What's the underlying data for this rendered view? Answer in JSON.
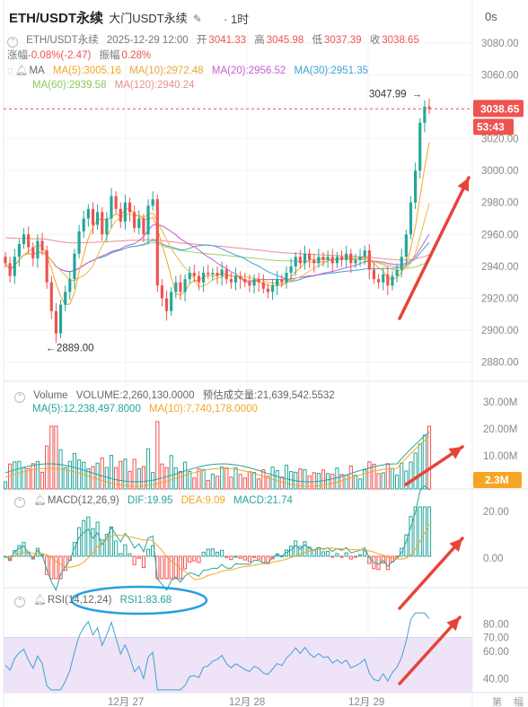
{
  "header": {
    "symbol": "ETH/USDT永续",
    "exchange": "大门USDT永续",
    "timeframe": "1时",
    "seconds": "0s"
  },
  "ohlc_line": {
    "symbol": "ETH/USDT永续",
    "datetime": "2025-12-29 12:00",
    "open_label": "开",
    "open": "3041.33",
    "high_label": "高",
    "high": "3045.98",
    "low_label": "低",
    "low": "3037.39",
    "close_label": "收",
    "close": "3038.65",
    "change_label": "涨幅",
    "change": "-0.08%(-2.47)",
    "amplitude_label": "振幅",
    "amplitude": "0.28%"
  },
  "ma_line": {
    "label": "MA",
    "ma5": "MA(5):3005.16",
    "ma10": "MA(10):2972.48",
    "ma20": "MA(20):2956.52",
    "ma30": "MA(30):2951.35",
    "ma60": "MA(60):2939.58",
    "ma120": "MA(120):2940.24"
  },
  "volume_line": {
    "label": "Volume",
    "volume": "VOLUME:2,260,130.0000",
    "est": "预估成交量:21,639,542.5532",
    "ma5": "MA(5):12,238,497.8000",
    "ma10": "MA(10):7,740,178.0000"
  },
  "macd_line": {
    "label": "MACD(12,26,9)",
    "dif": "DIF:19.95",
    "dea": "DEA:9.09",
    "macd": "MACD:21.74"
  },
  "rsi_line": {
    "label": "RSI(14,12,24)",
    "rsi1": "RSI1:83.68"
  },
  "annotations": {
    "high_mark": "3047.99",
    "low_mark": "2889.00"
  },
  "price_tags": {
    "last": "3038.65",
    "countdown": "53:43",
    "volume_tag": "2.3M"
  },
  "x_labels": [
    "12月 27",
    "12月 28",
    "12月 29"
  ],
  "corner_labels": [
    "第",
    "幅"
  ],
  "colors": {
    "up": "#26a69a",
    "down": "#ef5350",
    "ma5": "#f5a623",
    "ma10": "#e8b84a",
    "ma20": "#c85ad3",
    "ma30": "#3aa3d8",
    "ma60": "#9cd26a",
    "ma120": "#e88f8f",
    "rsi_band": "#efe3f7",
    "arrow": "#e8433a",
    "circle": "#2a9fe0"
  },
  "chart_data": [
    {
      "type": "candlestick",
      "title": "ETH/USDT永续 1时",
      "y_ticks": [
        3080.0,
        3060.0,
        3040.0,
        3020.0,
        3000.0,
        2980.0,
        2960.0,
        2940.0,
        2920.0,
        2900.0,
        2880.0
      ],
      "ylim": [
        2868,
        3090
      ],
      "last_price": 3038.65,
      "high": 3047.99,
      "low": 2889.0,
      "x_ticks": [
        "12月 27",
        "12月 28",
        "12月 29"
      ],
      "candles_close": [
        2942,
        2934,
        2946,
        2954,
        2960,
        2952,
        2945,
        2956,
        2950,
        2930,
        2912,
        2898,
        2916,
        2924,
        2932,
        2948,
        2962,
        2970,
        2976,
        2966,
        2974,
        2960,
        2970,
        2984,
        2976,
        2968,
        2980,
        2974,
        2964,
        2970,
        2960,
        2978,
        2982,
        2928,
        2920,
        2912,
        2924,
        2930,
        2924,
        2932,
        2936,
        2934,
        2930,
        2936,
        2935,
        2936,
        2934,
        2938,
        2932,
        2930,
        2934,
        2932,
        2930,
        2928,
        2932,
        2930,
        2926,
        2924,
        2928,
        2932,
        2930,
        2936,
        2940,
        2946,
        2942,
        2948,
        2944,
        2942,
        2946,
        2944,
        2946,
        2942,
        2946,
        2944,
        2948,
        2942,
        2944,
        2946,
        2950,
        2938,
        2932,
        2930,
        2935,
        2928,
        2934,
        2938,
        2946,
        2960,
        2980,
        3000,
        3030,
        3040,
        3038.65
      ],
      "ma_values": {
        "MA5": 3005.16,
        "MA10": 2972.48,
        "MA20": 2956.52,
        "MA30": 2951.35,
        "MA60": 2939.58,
        "MA120": 2940.24
      }
    },
    {
      "type": "bar",
      "title": "Volume",
      "y_ticks": [
        "30.00M",
        "20.00M",
        "10.00M"
      ],
      "volume": 2260130.0,
      "estimated_volume": 21639542.5532,
      "ma5": 12238497.8,
      "ma10": 7740178.0
    },
    {
      "type": "bar",
      "title": "MACD(12,26,9)",
      "y_ticks": [
        "20.00",
        "0.00"
      ],
      "dif": 19.95,
      "dea": 9.09,
      "macd": 21.74
    },
    {
      "type": "line",
      "title": "RSI(14,12,24)",
      "y_ticks": [
        "80.00",
        "70.00",
        "60.00",
        "40.00"
      ],
      "rsi1": 83.68,
      "band": [
        30,
        70
      ]
    }
  ]
}
